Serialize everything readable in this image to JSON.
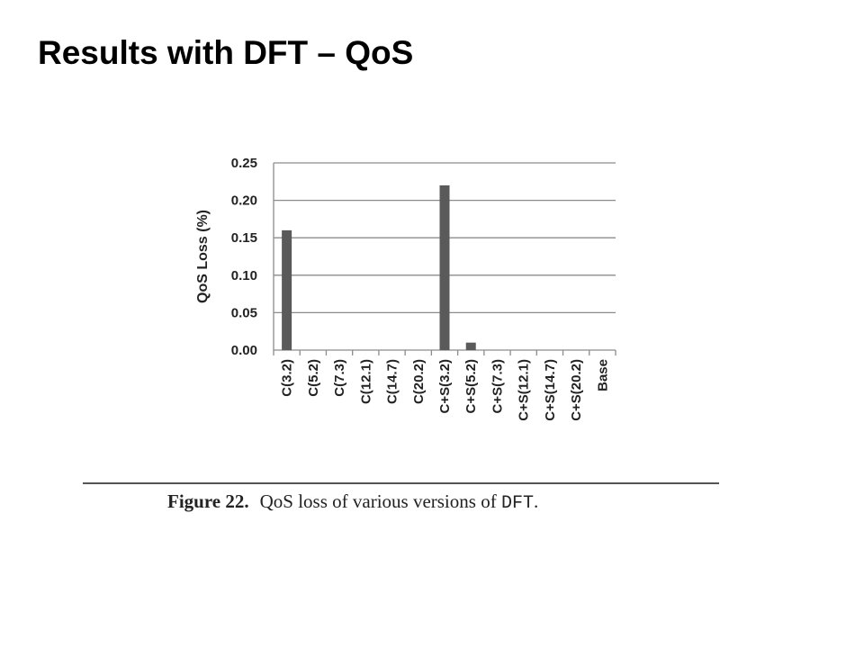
{
  "slide": {
    "title": "Results with DFT – QoS"
  },
  "caption": {
    "label": "Figure 22.",
    "text": "QoS loss of various versions of",
    "code": "DFT",
    "end": "."
  },
  "chart_data": {
    "type": "bar",
    "ylabel": "QoS Loss (%)",
    "xlabel": "",
    "ylim": [
      0,
      0.25
    ],
    "yticks": [
      "0.00",
      "0.05",
      "0.10",
      "0.15",
      "0.20",
      "0.25"
    ],
    "grid": true,
    "categories": [
      "C(3.2)",
      "C(5.2)",
      "C(7.3)",
      "C(12.1)",
      "C(14.7)",
      "C(20.2)",
      "C+S(3.2)",
      "C+S(5.2)",
      "C+S(7.3)",
      "C+S(12.1)",
      "C+S(14.7)",
      "C+S(20.2)",
      "Base"
    ],
    "values": [
      0.16,
      0,
      0,
      0,
      0,
      0,
      0.22,
      0.01,
      0,
      0,
      0,
      0,
      0
    ],
    "bar_color": "#5a5a5a",
    "grid_color": "#8c8c8c"
  }
}
